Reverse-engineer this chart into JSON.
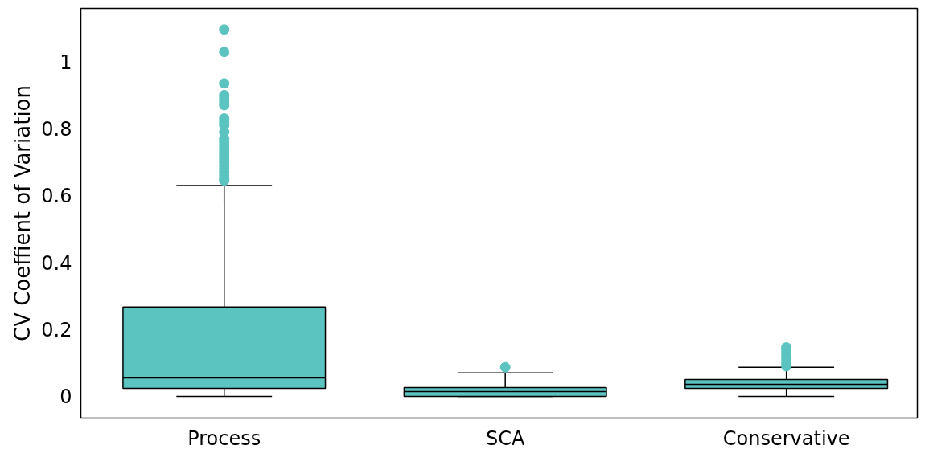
{
  "chart_data": {
    "type": "box",
    "ylabel": "CV Coeffient of Variation",
    "categories": [
      "Process",
      "SCA",
      "Conservative"
    ],
    "ylim": [
      -0.065,
      1.159
    ],
    "yticks": [
      0,
      0.2,
      0.4,
      0.6,
      0.8,
      1
    ],
    "grid": false,
    "series": [
      {
        "color": "#5bc4c0",
        "boxes": [
          {
            "low": 0,
            "q1": 0.024,
            "median": 0.055,
            "q3": 0.267,
            "high": 0.63,
            "outliers": [
              1.096,
              1.029,
              0.935,
              0.9,
              0.89,
              0.88,
              0.87,
              0.83,
              0.82,
              0.81,
              0.79,
              0.77,
              0.76,
              0.75,
              0.74,
              0.73,
              0.72,
              0.71,
              0.7,
              0.69,
              0.68,
              0.67,
              0.66,
              0.65,
              0.645
            ]
          },
          {
            "low": 0,
            "q1": 0,
            "median": 0.014,
            "q3": 0.026,
            "high": 0.07,
            "outliers": [
              0.087
            ]
          },
          {
            "low": 0,
            "q1": 0.024,
            "median": 0.036,
            "q3": 0.05,
            "high": 0.087,
            "outliers": [
              0.09,
              0.1,
              0.11,
              0.12,
              0.13,
              0.14,
              0.146
            ]
          }
        ]
      }
    ]
  }
}
